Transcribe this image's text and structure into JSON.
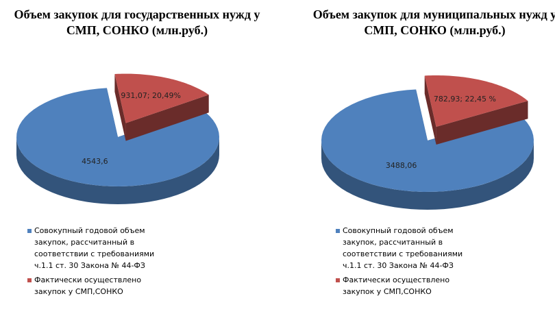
{
  "chart_data": [
    {
      "type": "pie",
      "title": "Объем закупок для государственных нужд у СМП, СОНКО (млн.руб.)",
      "categories": [
        "Совокупный годовой объем закупок, рассчитанный в соответствии с требованиями ч.1.1 ст. 30 Закона № 44-ФЗ",
        "Фактически осуществлено закупок у СМП,СОНКО"
      ],
      "values": [
        4543.6,
        931.07
      ],
      "value_labels": [
        "4543,6",
        "931,07; 20,49%"
      ],
      "colors": [
        "#4f81bd",
        "#c0504d"
      ],
      "legend": "bottom"
    },
    {
      "type": "pie",
      "title": "Объем закупок для муниципальных нужд у СМП, СОНКО (млн.руб.)",
      "categories": [
        "Совокупный годовой объем закупок, рассчитанный в соответствии с требованиями ч.1.1 ст. 30 Закона № 44-ФЗ",
        "Фактически осуществлено закупок у СМП,СОНКО"
      ],
      "values": [
        3488.06,
        782.93
      ],
      "value_labels": [
        "3488,06",
        "782,93; 22,45 %"
      ],
      "colors": [
        "#4f81bd",
        "#c0504d"
      ],
      "legend": "bottom"
    }
  ]
}
